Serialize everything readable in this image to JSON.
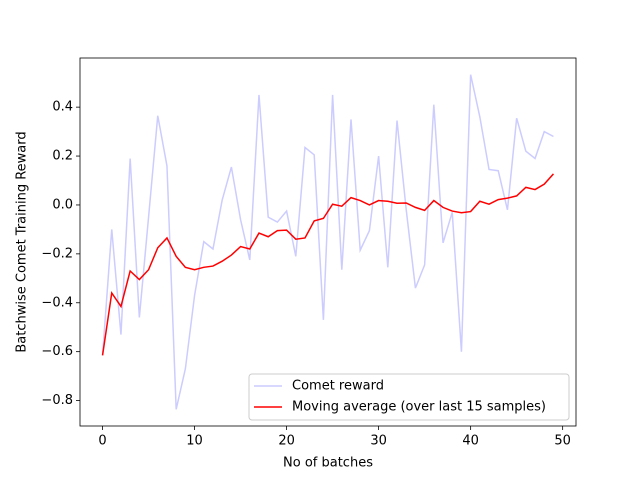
{
  "chart_data": {
    "type": "line",
    "xlabel": "No of batches",
    "ylabel": "Batchwise Comet Training Reward",
    "x": [
      0,
      1,
      2,
      3,
      4,
      5,
      6,
      7,
      8,
      9,
      10,
      11,
      12,
      13,
      14,
      15,
      16,
      17,
      18,
      19,
      20,
      21,
      22,
      23,
      24,
      25,
      26,
      27,
      28,
      29,
      30,
      31,
      32,
      33,
      34,
      35,
      36,
      37,
      38,
      39,
      40,
      41,
      42,
      43,
      44,
      45,
      46,
      47,
      48,
      49
    ],
    "series": [
      {
        "name": "Comet reward",
        "color": "#ccccff",
        "values": [
          -0.615,
          -0.1,
          -0.53,
          0.19,
          -0.46,
          -0.05,
          0.365,
          0.16,
          -0.836,
          -0.67,
          -0.37,
          -0.15,
          -0.18,
          0.02,
          0.155,
          -0.06,
          -0.225,
          0.45,
          -0.05,
          -0.07,
          -0.025,
          -0.21,
          0.235,
          0.205,
          -0.47,
          0.45,
          -0.265,
          0.35,
          -0.185,
          -0.105,
          0.2,
          -0.255,
          0.345,
          -0.02,
          -0.34,
          -0.245,
          0.41,
          -0.155,
          -0.03,
          -0.6,
          0.533,
          0.36,
          0.145,
          0.14,
          -0.02,
          0.355,
          0.22,
          0.19,
          0.3,
          0.28
        ]
      },
      {
        "name": "Moving average (over last 15 samples)",
        "color": "#ff0000",
        "values": [
          -0.615,
          -0.36,
          -0.415,
          -0.27,
          -0.305,
          -0.265,
          -0.175,
          -0.135,
          -0.21,
          -0.255,
          -0.265,
          -0.255,
          -0.25,
          -0.23,
          -0.205,
          -0.17,
          -0.18,
          -0.115,
          -0.13,
          -0.105,
          -0.103,
          -0.14,
          -0.135,
          -0.065,
          -0.055,
          0.003,
          -0.005,
          0.03,
          0.018,
          0.0,
          0.018,
          0.015,
          0.007,
          0.008,
          -0.01,
          -0.022,
          0.018,
          -0.01,
          -0.025,
          -0.032,
          -0.027,
          0.015,
          0.003,
          0.022,
          0.028,
          0.037,
          0.072,
          0.063,
          0.085,
          0.127
        ]
      }
    ],
    "xlim": [
      -2.45,
      51.45
    ],
    "xticks": [
      0,
      10,
      20,
      30,
      40,
      50
    ],
    "ylim": [
      -0.904,
      0.601
    ],
    "yticks": [
      {
        "value": -0.8,
        "label": "−0.8"
      },
      {
        "value": -0.6,
        "label": "−0.6"
      },
      {
        "value": -0.4,
        "label": "−0.4"
      },
      {
        "value": -0.2,
        "label": "−0.2"
      },
      {
        "value": 0,
        "label": "0.0"
      },
      0.2,
      0.4
    ],
    "legend": "lower right"
  }
}
